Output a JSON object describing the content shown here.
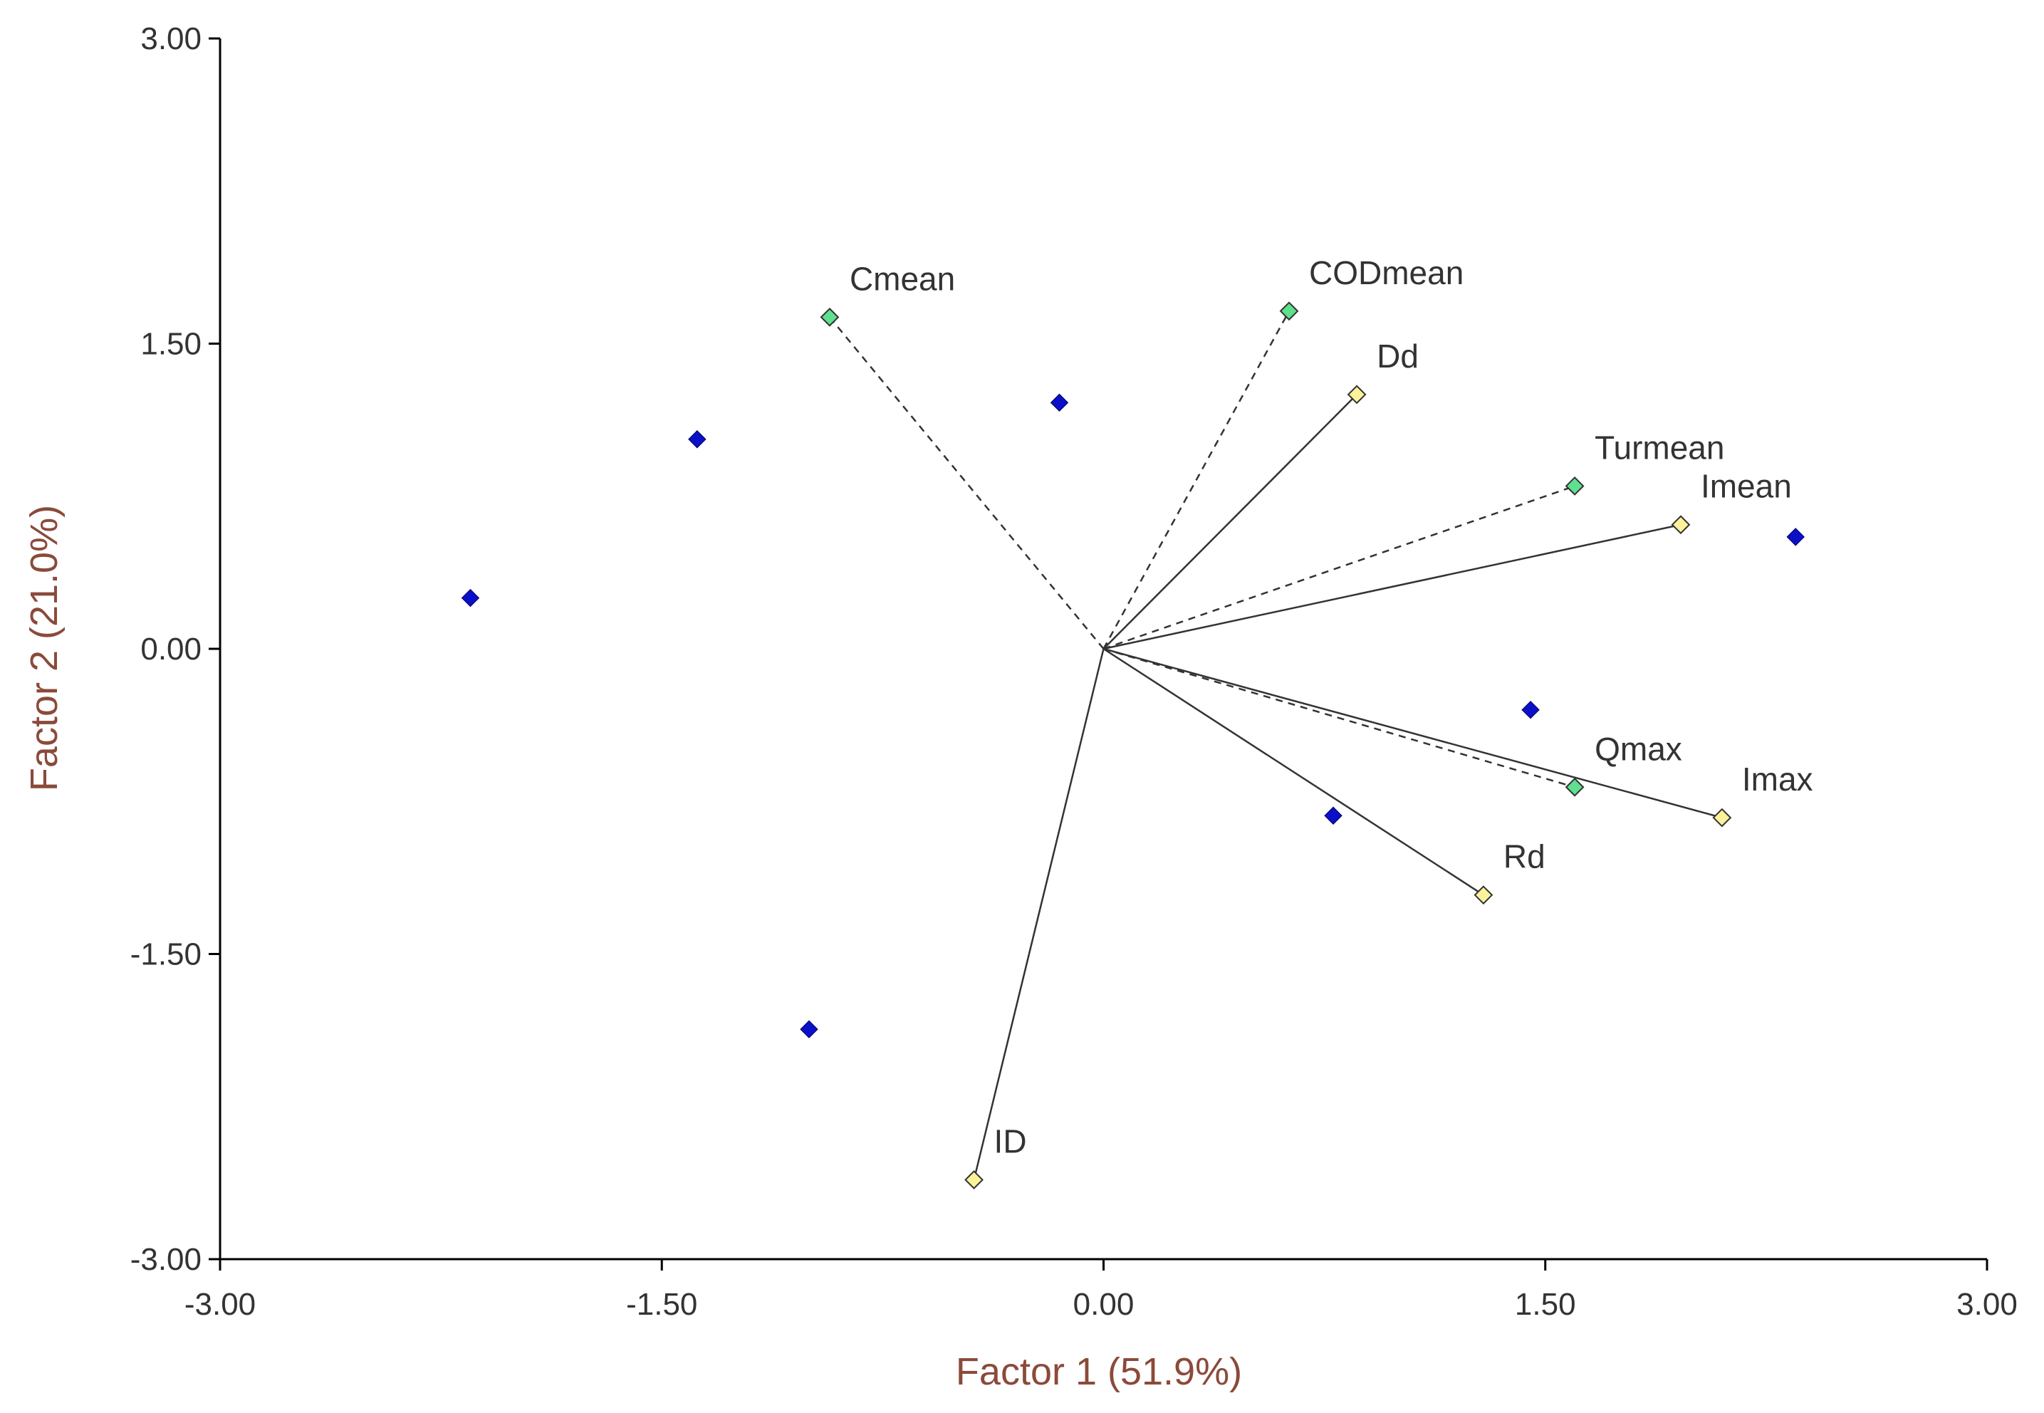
{
  "chart_data": {
    "type": "scatter",
    "title": "",
    "xlabel": "Factor 1 (51.9%)",
    "ylabel": "Factor 2 (21.0%)",
    "xlim": [
      -3.0,
      3.0
    ],
    "ylim": [
      -3.0,
      3.0
    ],
    "x_ticks": [
      "-3.00",
      "-1.50",
      "0.00",
      "1.50",
      "3.00"
    ],
    "y_ticks": [
      "3.00",
      "1.50",
      "0.00",
      "-1.50",
      "-3.00"
    ],
    "grid": false,
    "legend": "none",
    "colors": {
      "axis_title": "#8b4a3a",
      "axis": "#000000",
      "sample_point": "#0a10c8",
      "variable_yellow": "#fbf29a",
      "variable_green": "#5fe08e"
    },
    "samples": [
      {
        "x": -2.15,
        "y": 0.25
      },
      {
        "x": -1.38,
        "y": 1.03
      },
      {
        "x": -0.15,
        "y": 1.21
      },
      {
        "x": -1.0,
        "y": -1.87
      },
      {
        "x": 0.78,
        "y": -0.82
      },
      {
        "x": 1.45,
        "y": -0.3
      },
      {
        "x": 2.35,
        "y": 0.55
      }
    ],
    "vectors": [
      {
        "label": "Cmean",
        "x": -0.93,
        "y": 1.63,
        "marker": "green",
        "line": "dashed"
      },
      {
        "label": "CODmean",
        "x": 0.63,
        "y": 1.66,
        "marker": "green",
        "line": "dashed"
      },
      {
        "label": "Dd",
        "x": 0.86,
        "y": 1.25,
        "marker": "yellow",
        "line": "solid"
      },
      {
        "label": "Turmean",
        "x": 1.6,
        "y": 0.8,
        "marker": "green",
        "line": "dashed"
      },
      {
        "label": "Imean",
        "x": 1.96,
        "y": 0.61,
        "marker": "yellow",
        "line": "solid"
      },
      {
        "label": "Qmax",
        "x": 1.6,
        "y": -0.68,
        "marker": "green",
        "line": "dashed"
      },
      {
        "label": "Imax",
        "x": 2.1,
        "y": -0.83,
        "marker": "yellow",
        "line": "solid"
      },
      {
        "label": "Rd",
        "x": 1.29,
        "y": -1.21,
        "marker": "yellow",
        "line": "solid"
      },
      {
        "label": "ID",
        "x": -0.44,
        "y": -2.61,
        "marker": "yellow",
        "line": "solid"
      }
    ]
  }
}
